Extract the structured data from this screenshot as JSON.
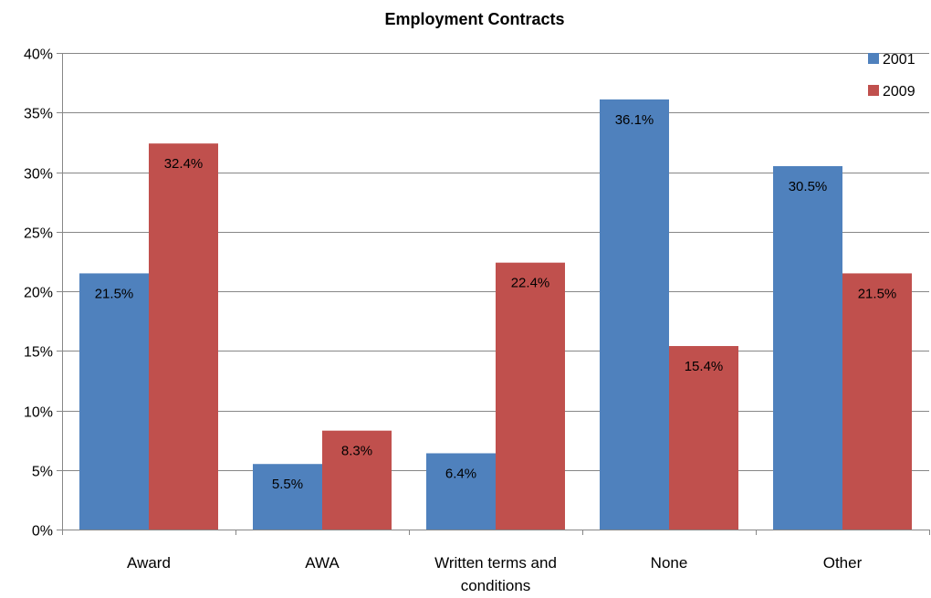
{
  "chart_data": {
    "type": "bar",
    "title": "Employment Contracts",
    "categories": [
      "Award",
      "AWA",
      "Written terms and conditions",
      "None",
      "Other"
    ],
    "category_lines": [
      [
        "Award"
      ],
      [
        "AWA"
      ],
      [
        "Written terms and",
        "conditions"
      ],
      [
        "None"
      ],
      [
        "Other"
      ]
    ],
    "series": [
      {
        "name": "2001",
        "color": "#4F81BD",
        "values": [
          21.5,
          5.5,
          6.4,
          36.1,
          30.5
        ],
        "labels": [
          "21.5%",
          "5.5%",
          "6.4%",
          "36.1%",
          "30.5%"
        ]
      },
      {
        "name": "2009",
        "color": "#C0504D",
        "values": [
          32.4,
          8.3,
          22.4,
          15.4,
          21.5
        ],
        "labels": [
          "32.4%",
          "8.3%",
          "22.4%",
          "15.4%",
          "21.5%"
        ]
      }
    ],
    "ylim": [
      0,
      40
    ],
    "yticks": [
      0,
      5,
      10,
      15,
      20,
      25,
      30,
      35,
      40
    ],
    "ytick_labels": [
      "0%",
      "5%",
      "10%",
      "15%",
      "20%",
      "25%",
      "30%",
      "35%",
      "40%"
    ],
    "grid": true,
    "legend_position": "top-right"
  }
}
